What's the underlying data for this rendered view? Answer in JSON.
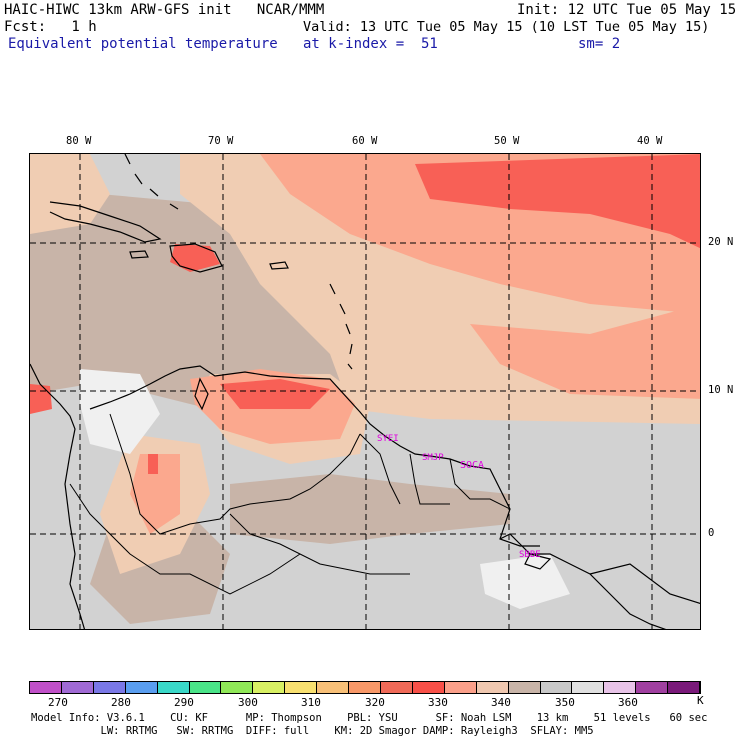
{
  "header": {
    "title_line": "HAIC-HIWC 13km ARW-GFS init   NCAR/MMM",
    "init": "Init: 12 UTC Tue 05 May 15",
    "fcst": "Fcst:   1 h",
    "valid": "Valid: 13 UTC Tue 05 May 15 (10 LST Tue 05 May 15)",
    "field": "Equivalent potential temperature",
    "kindex": "at k-index =  51",
    "sm": "sm= 2"
  },
  "map": {
    "lon_labels": [
      "80 W",
      "70 W",
      "60 W",
      "50 W",
      "40 W"
    ],
    "lat_labels": [
      "20 N",
      "10 N",
      "0"
    ],
    "stations": [
      "SYEI",
      "SMJP",
      "SOCA",
      "SBBE"
    ],
    "colors": {
      "grey_light": "#d2d2d2",
      "tan": "#c8b4a8",
      "peach": "#f0cdb3",
      "salmon": "#fba88e",
      "red": "#f86056",
      "white": "#f4f4f4"
    }
  },
  "colorbar": {
    "labels": [
      "270",
      "280",
      "290",
      "300",
      "310",
      "320",
      "330",
      "340",
      "350",
      "360",
      "K"
    ],
    "colors": [
      "#c050c8",
      "#a06ad4",
      "#7a78e6",
      "#5a9ef0",
      "#3ad8c8",
      "#4ae488",
      "#90e858",
      "#d8f064",
      "#f8e070",
      "#f8c078",
      "#f89868",
      "#f06a58",
      "#f85048",
      "#fba08a",
      "#f0c8b0",
      "#c8b4a8",
      "#c8c8c8",
      "#e0e0e0",
      "#e8c4e8",
      "#a040a0",
      "#7a1a7a"
    ]
  },
  "footer": {
    "line1": "Model Info: V3.6.1    CU: KF      MP: Thompson    PBL: YSU      SF: Noah LSM    13 km    51 levels   60 sec",
    "line2": "           LW: RRTMG   SW: RRTMG  DIFF: full    KM: 2D Smagor DAMP: Rayleigh3  SFLAY: MM5"
  }
}
